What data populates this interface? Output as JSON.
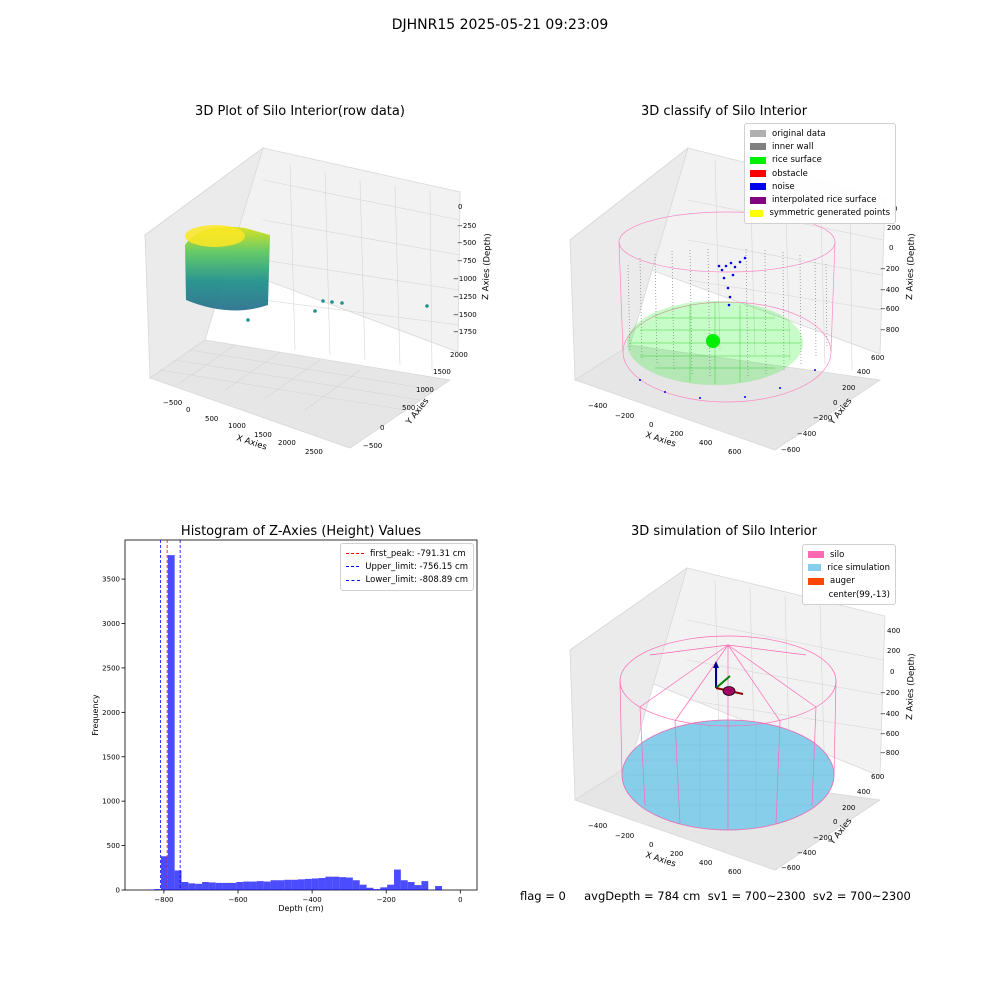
{
  "figure": {
    "suptitle": "DJHNR15 2025-05-21 09:23:09",
    "footer": "flag = 0     avgDepth = 784 cm  sv1 = 700~2300  sv2 = 700~2300"
  },
  "chart_data": [
    {
      "type": "scatter",
      "title": "3D Plot of Silo Interior(row data)",
      "xlabel": "X Axies",
      "ylabel": "Y Axies",
      "zlabel": "Z Axies (Depth)",
      "x_ticks": [
        "−500",
        "0",
        "500",
        "1000",
        "1500",
        "2000",
        "2500"
      ],
      "y_ticks": [
        "−500",
        "0",
        "500",
        "1000",
        "1500",
        "2000"
      ],
      "z_ticks": [
        "0",
        "−250",
        "−500",
        "−750",
        "−1000",
        "−1250",
        "−1500",
        "−1750"
      ],
      "colormap": [
        "#440154",
        "#31688e",
        "#21918c",
        "#35b779",
        "#fde725"
      ]
    },
    {
      "type": "scatter",
      "title": "3D classify of Silo Interior",
      "xlabel": "X Axies",
      "ylabel": "Y Axies",
      "zlabel": "Z Axies (Depth)",
      "x_ticks": [
        "−400",
        "−200",
        "0",
        "200",
        "400",
        "600"
      ],
      "y_ticks": [
        "−600",
        "−400",
        "−200",
        "0",
        "200",
        "400",
        "600"
      ],
      "z_ticks": [
        "200",
        "0",
        "−200",
        "−400",
        "−600",
        "−800"
      ],
      "z_partial_top": "0",
      "legend": [
        {
          "label": "original data",
          "color": "#b0b0b0"
        },
        {
          "label": "inner wall",
          "color": "#808080"
        },
        {
          "label": "rice surface",
          "color": "#00ee00"
        },
        {
          "label": "obstacle",
          "color": "#ff0000"
        },
        {
          "label": "noise",
          "color": "#0000ee"
        },
        {
          "label": "interpolated rice surface",
          "color": "#800080"
        },
        {
          "label": "symmetric generated points",
          "color": "#ffff00"
        }
      ]
    },
    {
      "type": "bar",
      "title": "Histogram of Z-Axies (Height) Values",
      "xlabel": "Depth (cm)",
      "ylabel": "Frequency",
      "xlim": [
        -905,
        45
      ],
      "ylim": [
        0,
        3940
      ],
      "x_ticks": [
        -800,
        -600,
        -400,
        -200,
        0
      ],
      "x_tick_labels": [
        "−800",
        "−600",
        "−400",
        "−200",
        "0"
      ],
      "y_ticks": [
        0,
        500,
        1000,
        1500,
        2000,
        2500,
        3000,
        3500
      ],
      "y_tick_labels": [
        "0",
        "500",
        "1000",
        "1500",
        "2000",
        "2500",
        "3000",
        "3500"
      ],
      "bar_color": "#0000ff",
      "bins": {
        "start": -845,
        "width": 18.5,
        "values": [
          5,
          10,
          380,
          3770,
          220,
          90,
          75,
          70,
          90,
          85,
          80,
          80,
          80,
          90,
          95,
          95,
          100,
          95,
          110,
          110,
          115,
          115,
          120,
          125,
          130,
          135,
          150,
          150,
          145,
          140,
          110,
          60,
          25,
          10,
          30,
          60,
          230,
          110,
          90,
          55,
          100,
          0,
          45
        ]
      },
      "vlines": [
        {
          "label": "first_peak: -791.31 cm",
          "x": -791.31,
          "color": "#ff0000"
        },
        {
          "label": "Upper_limit: -756.15 cm",
          "x": -756.15,
          "color": "#0000ff"
        },
        {
          "label": "Lower_limit: -808.89 cm",
          "x": -808.89,
          "color": "#0000ff"
        }
      ]
    },
    {
      "type": "scatter",
      "title": "3D simulation of Silo Interior",
      "xlabel": "X Axies",
      "ylabel": "Y Axies",
      "zlabel": "Z Axies (Depth)",
      "x_ticks": [
        "−400",
        "−200",
        "0",
        "200",
        "400",
        "600"
      ],
      "y_ticks": [
        "−600",
        "−400",
        "−200",
        "0",
        "200",
        "400",
        "600"
      ],
      "z_ticks": [
        "400",
        "200",
        "0",
        "−200",
        "−400",
        "−600",
        "−800"
      ],
      "legend": [
        {
          "label": "silo",
          "color": "#ff69b4"
        },
        {
          "label": "rice simulation",
          "color": "#87ceeb"
        },
        {
          "label": "auger",
          "color": "#ff4500"
        },
        {
          "label": "center(99,-13)",
          "color": ""
        }
      ]
    }
  ]
}
